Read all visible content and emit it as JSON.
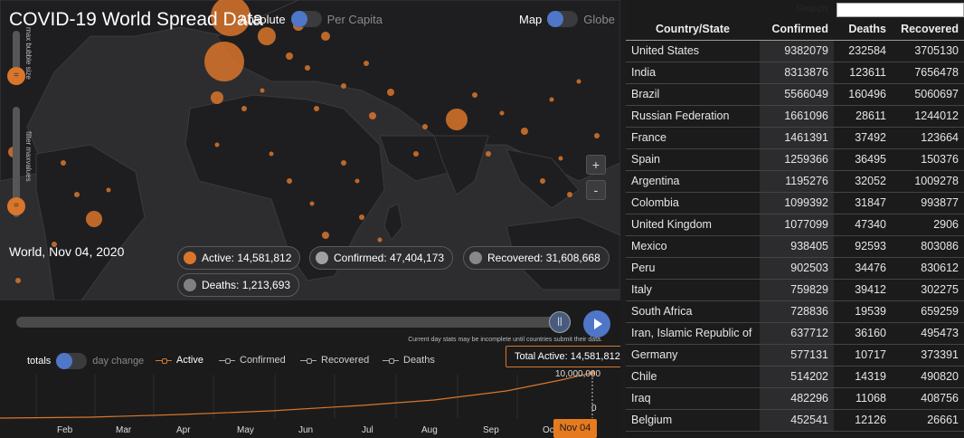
{
  "header": {
    "title": "COVID-19 World Spread Data"
  },
  "scale_toggle": {
    "on": "Absolute",
    "off": "Per Capita"
  },
  "view_toggle": {
    "on": "Map",
    "off": "Globe"
  },
  "sliders": {
    "bubble_size_label": "max bubble size",
    "filter_label": "filter maxvalues"
  },
  "zoom": {
    "in": "+",
    "out": "-"
  },
  "current_date": "World, Nov 04, 2020",
  "stats": {
    "active": "Active: 14,581,812",
    "confirmed": "Confirmed: 47,404,173",
    "recovered": "Recovered: 31,608,668",
    "deaths": "Deaths: 1,213,693"
  },
  "colors": {
    "active": "#d9762c",
    "confirmed": "#a0a0a0",
    "recovered": "#888888",
    "deaths": "#808080",
    "accent": "#4f76c8",
    "date_tag": "#e67a1f"
  },
  "timeline": {
    "note": "Current day stats may be incomplete until countries submit their data.",
    "totals_label": "totals",
    "day_change_label": "day change",
    "legend": [
      "Active",
      "Confirmed",
      "Recovered",
      "Deaths"
    ],
    "total_box": "Total Active: 14,581,812",
    "y_top": "10,000,000",
    "y_bottom": "0",
    "months": [
      "Feb",
      "Mar",
      "Apr",
      "May",
      "Jun",
      "Jul",
      "Aug",
      "Sep",
      "Oct"
    ],
    "current_date_tag": "Nov 04"
  },
  "table": {
    "search_label": "Search:",
    "columns": [
      "Country/State",
      "Confirmed",
      "Deaths",
      "Recovered"
    ],
    "rows": [
      [
        "United States",
        "9382079",
        "232584",
        "3705130"
      ],
      [
        "India",
        "8313876",
        "123611",
        "7656478"
      ],
      [
        "Brazil",
        "5566049",
        "160496",
        "5060697"
      ],
      [
        "Russian Federation",
        "1661096",
        "28611",
        "1244012"
      ],
      [
        "France",
        "1461391",
        "37492",
        "123664"
      ],
      [
        "Spain",
        "1259366",
        "36495",
        "150376"
      ],
      [
        "Argentina",
        "1195276",
        "32052",
        "1009278"
      ],
      [
        "Colombia",
        "1099392",
        "31847",
        "993877"
      ],
      [
        "United Kingdom",
        "1077099",
        "47340",
        "2906"
      ],
      [
        "Mexico",
        "938405",
        "92593",
        "803086"
      ],
      [
        "Peru",
        "902503",
        "34476",
        "830612"
      ],
      [
        "Italy",
        "759829",
        "39412",
        "302275"
      ],
      [
        "South Africa",
        "728836",
        "19539",
        "659259"
      ],
      [
        "Iran, Islamic Republic of",
        "637712",
        "36160",
        "495473"
      ],
      [
        "Germany",
        "577131",
        "10717",
        "373391"
      ],
      [
        "Chile",
        "514202",
        "14319",
        "490820"
      ],
      [
        "Iraq",
        "482296",
        "11068",
        "408756"
      ],
      [
        "Belgium",
        "452541",
        "12126",
        "26661"
      ]
    ]
  }
}
